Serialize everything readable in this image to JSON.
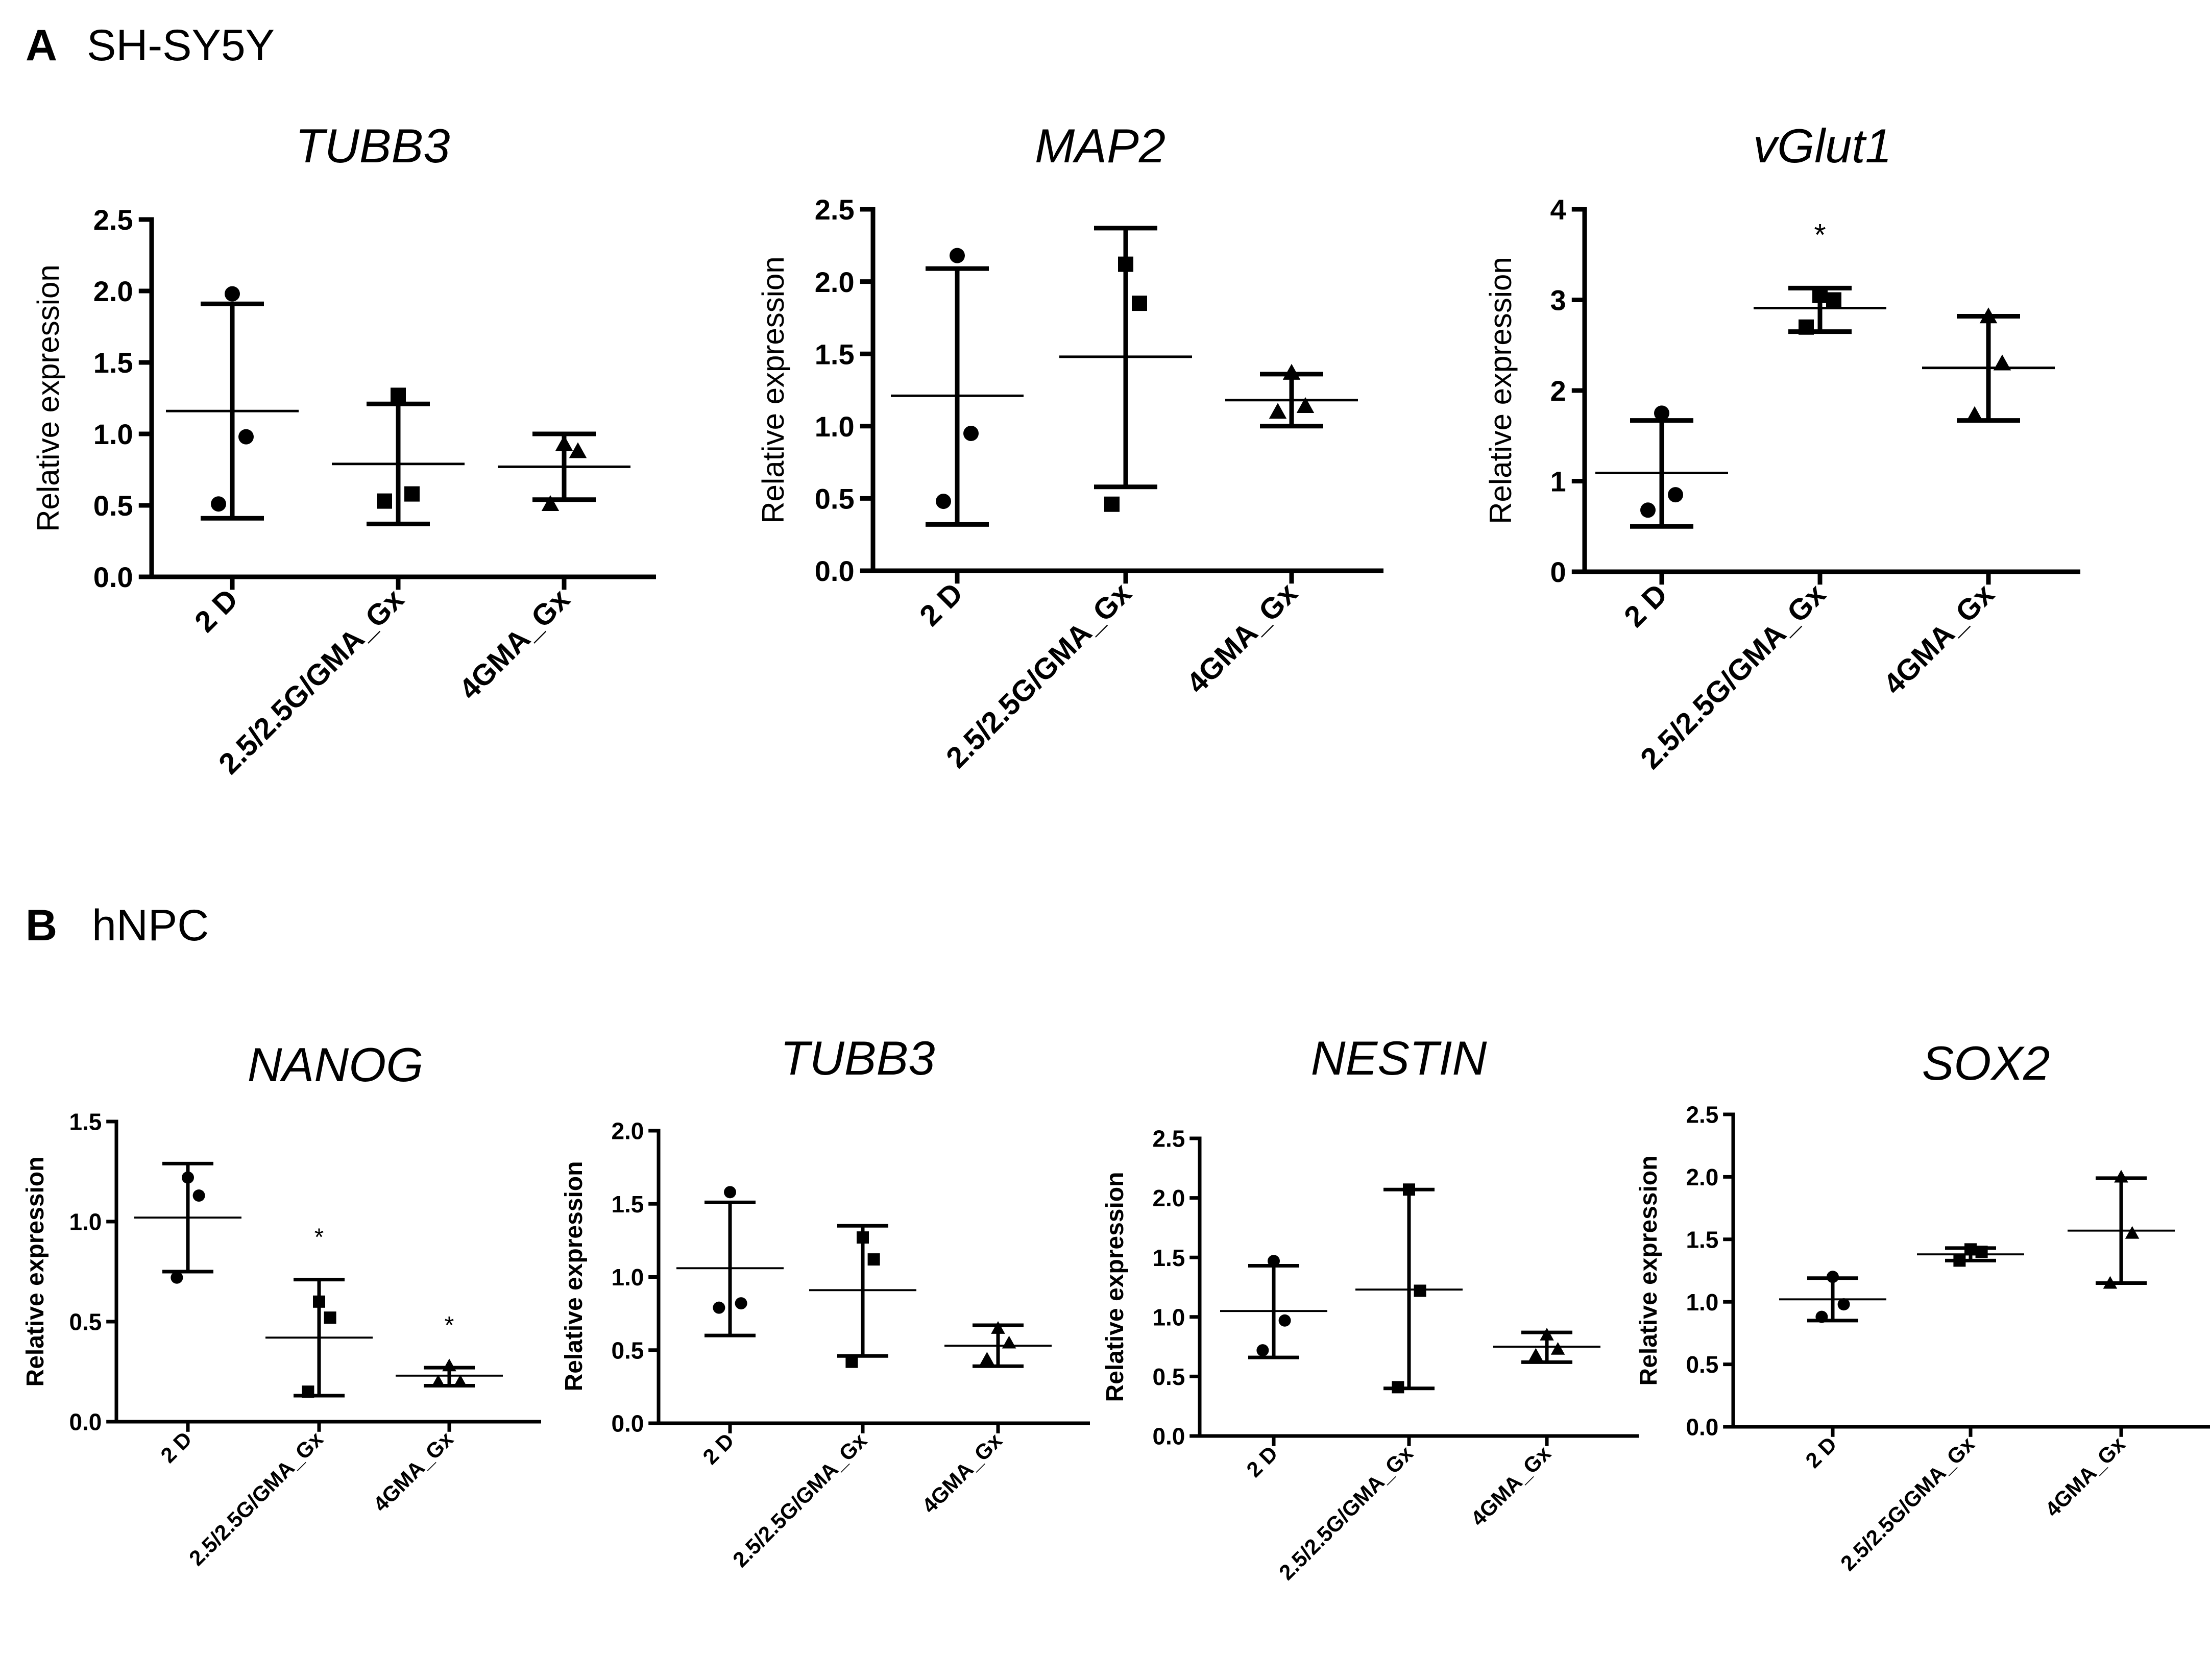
{
  "panels": [
    {
      "label": "A",
      "name": "SH-SY5Y"
    },
    {
      "label": "B",
      "name": "hNPC"
    }
  ],
  "chart_data": [
    {
      "type": "scatter",
      "panel": "A",
      "title": "TUBB3",
      "ylabel": "Relative expression",
      "ylim": [
        0,
        2.5
      ],
      "yticks": [
        "0.0",
        "0.5",
        "1.0",
        "1.5",
        "2.0",
        "2.5"
      ],
      "categories": [
        "2 D",
        "2.5/2.5G/GMA_Gx",
        "4GMA_Gx"
      ],
      "groups": [
        {
          "values": [
            1.98,
            0.98,
            0.51
          ],
          "mean": 1.16,
          "err_low": 0.41,
          "err_high": 1.91,
          "significance": ""
        },
        {
          "values": [
            1.27,
            0.58,
            0.53
          ],
          "mean": 0.79,
          "err_low": 0.37,
          "err_high": 1.21,
          "significance": ""
        },
        {
          "values": [
            0.93,
            0.88,
            0.51
          ],
          "mean": 0.77,
          "err_low": 0.54,
          "err_high": 1.0,
          "significance": ""
        }
      ]
    },
    {
      "type": "scatter",
      "panel": "A",
      "title": "MAP2",
      "ylabel": "Relative expression",
      "ylim": [
        0,
        2.5
      ],
      "yticks": [
        "0.0",
        "0.5",
        "1.0",
        "1.5",
        "2.0",
        "2.5"
      ],
      "categories": [
        "2 D",
        "2.5/2.5G/GMA_Gx",
        "4GMA_Gx"
      ],
      "groups": [
        {
          "values": [
            2.18,
            0.95,
            0.48
          ],
          "mean": 1.21,
          "err_low": 0.32,
          "err_high": 2.09,
          "significance": ""
        },
        {
          "values": [
            2.12,
            1.85,
            0.46
          ],
          "mean": 1.48,
          "err_low": 0.58,
          "err_high": 2.37,
          "significance": ""
        },
        {
          "values": [
            1.37,
            1.14,
            1.1
          ],
          "mean": 1.18,
          "err_low": 1.0,
          "err_high": 1.36,
          "significance": ""
        }
      ]
    },
    {
      "type": "scatter",
      "panel": "A",
      "title": "vGlut1",
      "ylabel": "Relative expression",
      "ylim": [
        0,
        4
      ],
      "yticks": [
        "0",
        "1",
        "2",
        "3",
        "4"
      ],
      "categories": [
        "2 D",
        "2.5/2.5G/GMA_Gx",
        "4GMA_Gx"
      ],
      "groups": [
        {
          "values": [
            1.75,
            0.85,
            0.68
          ],
          "mean": 1.09,
          "err_low": 0.5,
          "err_high": 1.67,
          "significance": ""
        },
        {
          "values": [
            3.05,
            3.0,
            2.7
          ],
          "mean": 2.91,
          "err_low": 2.65,
          "err_high": 3.13,
          "significance": "*"
        },
        {
          "values": [
            2.82,
            2.3,
            1.73
          ],
          "mean": 2.25,
          "err_low": 1.67,
          "err_high": 2.82,
          "significance": ""
        }
      ]
    },
    {
      "type": "scatter",
      "panel": "B",
      "title": "NANOG",
      "ylabel": "Relative expression",
      "ylim": [
        0,
        1.5
      ],
      "yticks": [
        "0.0",
        "0.5",
        "1.0",
        "1.5"
      ],
      "categories": [
        "2 D",
        "2.5/2.5G/GMA_Gx",
        "4GMA_Gx"
      ],
      "groups": [
        {
          "values": [
            1.22,
            1.13,
            0.72
          ],
          "mean": 1.02,
          "err_low": 0.75,
          "err_high": 1.29,
          "significance": ""
        },
        {
          "values": [
            0.6,
            0.52,
            0.15
          ],
          "mean": 0.42,
          "err_low": 0.13,
          "err_high": 0.71,
          "significance": "*"
        },
        {
          "values": [
            0.28,
            0.2,
            0.2
          ],
          "mean": 0.23,
          "err_low": 0.18,
          "err_high": 0.27,
          "significance": "*"
        }
      ]
    },
    {
      "type": "scatter",
      "panel": "B",
      "title": "TUBB3",
      "ylabel": "Relative expression",
      "ylim": [
        0,
        2.0
      ],
      "yticks": [
        "0.0",
        "0.5",
        "1.0",
        "1.5",
        "2.0"
      ],
      "categories": [
        "2 D",
        "2.5/2.5G/GMA_Gx",
        "4GMA_Gx"
      ],
      "groups": [
        {
          "values": [
            1.58,
            0.82,
            0.79
          ],
          "mean": 1.06,
          "err_low": 0.6,
          "err_high": 1.51,
          "significance": ""
        },
        {
          "values": [
            1.27,
            1.12,
            0.42
          ],
          "mean": 0.91,
          "err_low": 0.46,
          "err_high": 1.35,
          "significance": ""
        },
        {
          "values": [
            0.65,
            0.55,
            0.44
          ],
          "mean": 0.53,
          "err_low": 0.39,
          "err_high": 0.67,
          "significance": ""
        }
      ]
    },
    {
      "type": "scatter",
      "panel": "B",
      "title": "NESTIN",
      "ylabel": "Relative expression",
      "ylim": [
        0,
        2.5
      ],
      "yticks": [
        "0.0",
        "0.5",
        "1.0",
        "1.5",
        "2.0",
        "2.5"
      ],
      "categories": [
        "2 D",
        "2.5/2.5G/GMA_Gx",
        "4GMA_Gx"
      ],
      "groups": [
        {
          "values": [
            1.47,
            0.97,
            0.72
          ],
          "mean": 1.05,
          "err_low": 0.66,
          "err_high": 1.43,
          "significance": ""
        },
        {
          "values": [
            2.07,
            1.22,
            0.41
          ],
          "mean": 1.23,
          "err_low": 0.4,
          "err_high": 2.07,
          "significance": ""
        },
        {
          "values": [
            0.85,
            0.73,
            0.68
          ],
          "mean": 0.75,
          "err_low": 0.62,
          "err_high": 0.87,
          "significance": ""
        }
      ]
    },
    {
      "type": "scatter",
      "panel": "B",
      "title": "SOX2",
      "ylabel": "Relative expression",
      "ylim": [
        0,
        2.5
      ],
      "yticks": [
        "0.0",
        "0.5",
        "1.0",
        "1.5",
        "2.0",
        "2.5"
      ],
      "categories": [
        "2 D",
        "2.5/2.5G/GMA_Gx",
        "4GMA_Gx"
      ],
      "groups": [
        {
          "values": [
            1.2,
            0.98,
            0.88
          ],
          "mean": 1.02,
          "err_low": 0.85,
          "err_high": 1.19,
          "significance": ""
        },
        {
          "values": [
            1.42,
            1.4,
            1.33
          ],
          "mean": 1.38,
          "err_low": 1.33,
          "err_high": 1.43,
          "significance": ""
        },
        {
          "values": [
            2.0,
            1.55,
            1.15
          ],
          "mean": 1.57,
          "err_low": 1.15,
          "err_high": 1.99,
          "significance": ""
        }
      ]
    }
  ]
}
